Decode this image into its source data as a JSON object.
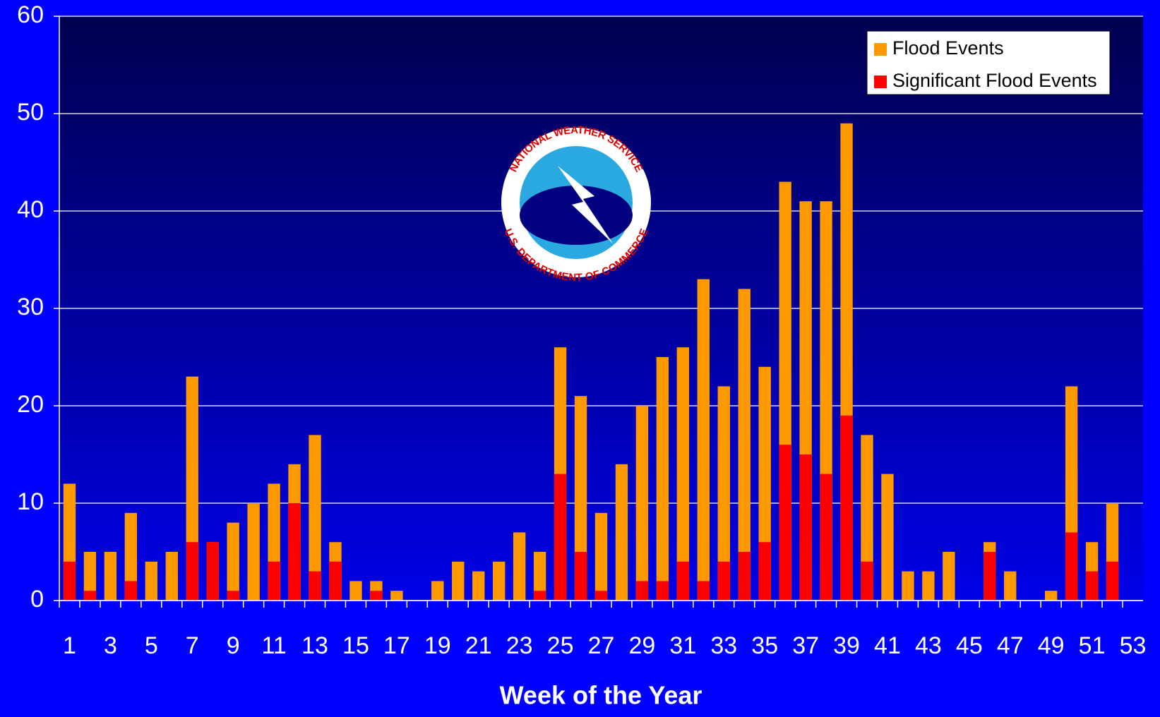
{
  "chart_data": {
    "type": "bar",
    "overlay": true,
    "xlabel": "Week of the Year",
    "categories": [
      1,
      null,
      3,
      null,
      5,
      null,
      7,
      null,
      9,
      null,
      11,
      null,
      13,
      null,
      15,
      null,
      17,
      null,
      19,
      null,
      21,
      null,
      23,
      null,
      25,
      null,
      27,
      null,
      29,
      null,
      31,
      null,
      33,
      null,
      35,
      null,
      37,
      null,
      39,
      null,
      41,
      null,
      43,
      null,
      45,
      null,
      47,
      null,
      49,
      null,
      51,
      null,
      53
    ],
    "series": [
      {
        "name": "Flood Events",
        "color": "#ff9900",
        "values": [
          12,
          5,
          5,
          9,
          4,
          5,
          23,
          6,
          8,
          10,
          12,
          14,
          17,
          6,
          2,
          2,
          1,
          0,
          2,
          4,
          3,
          4,
          7,
          5,
          26,
          21,
          9,
          14,
          20,
          25,
          26,
          33,
          22,
          32,
          24,
          43,
          41,
          41,
          49,
          17,
          13,
          3,
          3,
          5,
          0,
          6,
          3,
          0,
          1,
          22,
          6,
          10,
          0
        ]
      },
      {
        "name": "Significant Flood Events",
        "color": "#ff0000",
        "values": [
          4,
          1,
          0,
          2,
          0,
          0,
          6,
          6,
          1,
          0,
          4,
          10,
          3,
          4,
          0,
          1,
          0,
          0,
          0,
          0,
          0,
          0,
          0,
          1,
          13,
          5,
          1,
          0,
          2,
          2,
          4,
          2,
          4,
          5,
          6,
          16,
          15,
          13,
          19,
          4,
          0,
          0,
          0,
          0,
          0,
          5,
          0,
          0,
          0,
          7,
          3,
          4,
          0
        ]
      }
    ],
    "ylim": [
      0,
      60
    ],
    "yticks": [
      0,
      10,
      20,
      30,
      40,
      50,
      60
    ],
    "grid": true,
    "legend": "top-right",
    "logo": {
      "top_text": "NATIONAL WEATHER SERVICE",
      "bottom_text": "U.S. DEPARTMENT OF COMMERCE"
    }
  }
}
